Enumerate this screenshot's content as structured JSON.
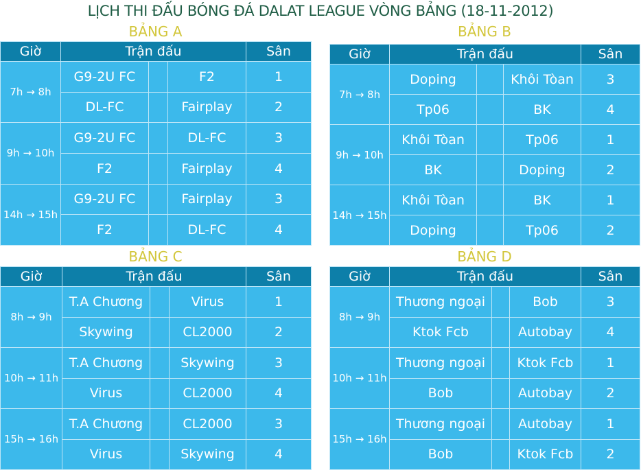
{
  "title": "LỊCH THI ĐẤU BÓNG ĐÁ DALAT LEAGUE  VÒNG BẢNG (18-11-2012)",
  "colors": {
    "header_bg": "#0d7fa9",
    "cell_bg": "#3cb9eb",
    "title": "#1f5d45",
    "group_title": "#d2c63a"
  },
  "headers": {
    "time": "Giờ",
    "match": "Trận đấu",
    "field": "Sân"
  },
  "groups": [
    {
      "name": "BẢNG A",
      "slots": [
        {
          "time": "7h → 8h",
          "matches": [
            {
              "home": "G9-2U FC",
              "away": "F2",
              "field": "1"
            },
            {
              "home": "DL-FC",
              "away": "Fairplay",
              "field": "2"
            }
          ]
        },
        {
          "time": "9h → 10h",
          "matches": [
            {
              "home": "G9-2U FC",
              "away": "DL-FC",
              "field": "3"
            },
            {
              "home": "F2",
              "away": "Fairplay",
              "field": "4"
            }
          ]
        },
        {
          "time": "14h → 15h",
          "matches": [
            {
              "home": "G9-2U FC",
              "away": "Fairplay",
              "field": "3"
            },
            {
              "home": "F2",
              "away": "DL-FC",
              "field": "4"
            }
          ]
        }
      ]
    },
    {
      "name": "BẢNG B",
      "slots": [
        {
          "time": "7h → 8h",
          "matches": [
            {
              "home": "Doping",
              "away": "Khôi Tòan",
              "field": "3"
            },
            {
              "home": "Tp06",
              "away": "BK",
              "field": "4"
            }
          ]
        },
        {
          "time": "9h → 10h",
          "matches": [
            {
              "home": "Khôi Tòan",
              "away": "Tp06",
              "field": "1"
            },
            {
              "home": "BK",
              "away": "Doping",
              "field": "2"
            }
          ]
        },
        {
          "time": "14h → 15h",
          "matches": [
            {
              "home": "Khôi Tòan",
              "away": "BK",
              "field": "1"
            },
            {
              "home": "Doping",
              "away": "Tp06",
              "field": "2"
            }
          ]
        }
      ]
    },
    {
      "name": "BẢNG C",
      "slots": [
        {
          "time": "8h → 9h",
          "matches": [
            {
              "home": "T.A Chương",
              "away": "Virus",
              "field": "1"
            },
            {
              "home": "Skywing",
              "away": "CL2000",
              "field": "2"
            }
          ]
        },
        {
          "time": "10h → 11h",
          "matches": [
            {
              "home": "T.A Chương",
              "away": "Skywing",
              "field": "3"
            },
            {
              "home": "Virus",
              "away": "CL2000",
              "field": "4"
            }
          ]
        },
        {
          "time": "15h → 16h",
          "matches": [
            {
              "home": "T.A Chương",
              "away": "CL2000",
              "field": "3"
            },
            {
              "home": "Virus",
              "away": "Skywing",
              "field": "4"
            }
          ]
        }
      ]
    },
    {
      "name": "BẢNG D",
      "slots": [
        {
          "time": "8h → 9h",
          "matches": [
            {
              "home": "Thương ngoại",
              "away": "Bob",
              "field": "3"
            },
            {
              "home": "Ktok Fcb",
              "away": "Autobay",
              "field": "4"
            }
          ]
        },
        {
          "time": "10h → 11h",
          "matches": [
            {
              "home": "Thương ngoại",
              "away": "Ktok Fcb",
              "field": "1"
            },
            {
              "home": "Bob",
              "away": "Autobay",
              "field": "2"
            }
          ]
        },
        {
          "time": "15h → 16h",
          "matches": [
            {
              "home": "Thương ngoại",
              "away": "Autobay",
              "field": "1"
            },
            {
              "home": "Bob",
              "away": "Ktok Fcb",
              "field": "2"
            }
          ]
        }
      ]
    }
  ]
}
